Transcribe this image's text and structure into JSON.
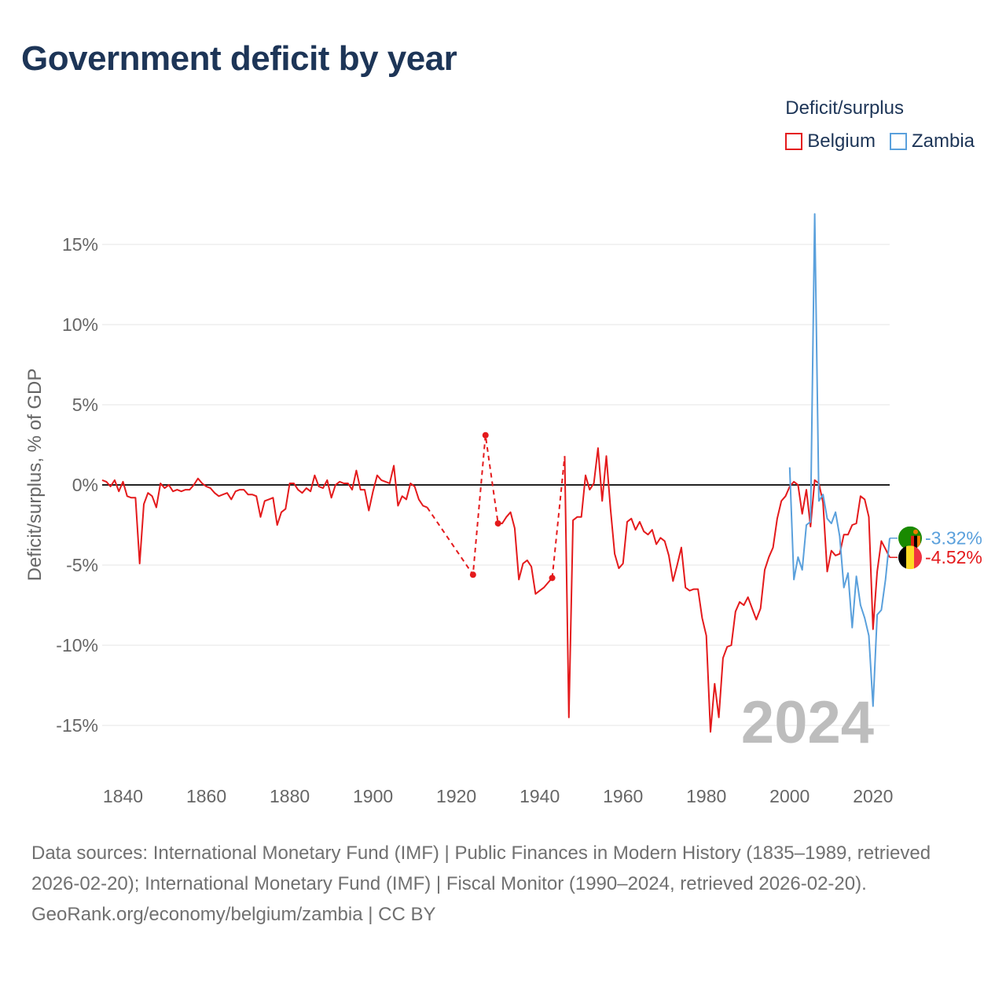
{
  "title": "Government deficit by year",
  "legend": {
    "title": "Deficit/surplus",
    "items": [
      {
        "name": "Belgium",
        "color": "#e41a1c"
      },
      {
        "name": "Zambia",
        "color": "#5aa0dc"
      }
    ]
  },
  "footer": {
    "sources": "Data sources: International Monetary Fund (IMF) | Public Finances in Modern History (1835–1989, retrieved 2026-02-20); International Monetary Fund (IMF) | Fiscal Monitor (1990–2024, retrieved 2026-02-20).",
    "credit": "GeoRank.org/economy/belgium/zambia | CC BY"
  },
  "chart_data": {
    "type": "line",
    "title": "Government deficit by year",
    "xlabel": "",
    "ylabel": "Deficit/surplus, % of GDP",
    "xlim": [
      1835,
      2024
    ],
    "ylim": [
      -17,
      17
    ],
    "yticks": [
      15,
      10,
      5,
      0,
      -5,
      -10,
      -15
    ],
    "ytick_labels": [
      "15%",
      "10%",
      "5%",
      "0%",
      "-5%",
      "-10%",
      "-15%"
    ],
    "xticks": [
      1840,
      1860,
      1880,
      1900,
      1920,
      1940,
      1960,
      1980,
      2000,
      2020
    ],
    "xtick_labels": [
      "1840",
      "1860",
      "1880",
      "1900",
      "1920",
      "1940",
      "1960",
      "1980",
      "2000",
      "2020"
    ],
    "year_label": "2024",
    "end_labels": [
      {
        "series": "Zambia",
        "value": -3.32,
        "label": "-3.32%",
        "color": "#5aa0dc"
      },
      {
        "series": "Belgium",
        "value": -4.52,
        "label": "-4.52%",
        "color": "#e41a1c"
      }
    ],
    "series": [
      {
        "name": "Belgium",
        "color": "#e41a1c",
        "segments": [
          {
            "style": "solid",
            "points": [
              [
                1835,
                0.3
              ],
              [
                1836,
                0.2
              ],
              [
                1837,
                -0.1
              ],
              [
                1838,
                0.3
              ],
              [
                1839,
                -0.4
              ],
              [
                1840,
                0.2
              ],
              [
                1841,
                -0.7
              ],
              [
                1842,
                -0.8
              ],
              [
                1843,
                -0.8
              ],
              [
                1844,
                -4.9
              ],
              [
                1845,
                -1.2
              ],
              [
                1846,
                -0.5
              ],
              [
                1847,
                -0.7
              ],
              [
                1848,
                -1.4
              ],
              [
                1849,
                0.1
              ],
              [
                1850,
                -0.2
              ],
              [
                1851,
                0.0
              ],
              [
                1852,
                -0.4
              ],
              [
                1853,
                -0.3
              ],
              [
                1854,
                -0.4
              ],
              [
                1855,
                -0.3
              ],
              [
                1856,
                -0.3
              ],
              [
                1857,
                0.0
              ],
              [
                1858,
                0.4
              ],
              [
                1859,
                0.1
              ],
              [
                1860,
                -0.1
              ],
              [
                1861,
                -0.2
              ],
              [
                1862,
                -0.5
              ],
              [
                1863,
                -0.7
              ],
              [
                1864,
                -0.6
              ],
              [
                1865,
                -0.5
              ],
              [
                1866,
                -0.9
              ],
              [
                1867,
                -0.4
              ],
              [
                1868,
                -0.3
              ],
              [
                1869,
                -0.3
              ],
              [
                1870,
                -0.6
              ],
              [
                1871,
                -0.6
              ],
              [
                1872,
                -0.7
              ],
              [
                1873,
                -2.0
              ],
              [
                1874,
                -1.0
              ],
              [
                1875,
                -0.9
              ],
              [
                1876,
                -0.8
              ],
              [
                1877,
                -2.5
              ],
              [
                1878,
                -1.7
              ],
              [
                1879,
                -1.5
              ],
              [
                1880,
                0.1
              ],
              [
                1881,
                0.1
              ],
              [
                1882,
                -0.3
              ],
              [
                1883,
                -0.5
              ],
              [
                1884,
                -0.2
              ],
              [
                1885,
                -0.4
              ],
              [
                1886,
                0.6
              ],
              [
                1887,
                -0.1
              ],
              [
                1888,
                -0.2
              ],
              [
                1889,
                0.3
              ],
              [
                1890,
                -0.8
              ],
              [
                1891,
                -0.0
              ],
              [
                1892,
                0.2
              ],
              [
                1893,
                0.1
              ],
              [
                1894,
                0.1
              ],
              [
                1895,
                -0.3
              ],
              [
                1896,
                0.9
              ],
              [
                1897,
                -0.3
              ],
              [
                1898,
                -0.3
              ],
              [
                1899,
                -1.6
              ],
              [
                1900,
                -0.4
              ],
              [
                1901,
                0.6
              ],
              [
                1902,
                0.3
              ],
              [
                1903,
                0.2
              ],
              [
                1904,
                0.1
              ],
              [
                1905,
                1.2
              ],
              [
                1906,
                -1.3
              ],
              [
                1907,
                -0.7
              ],
              [
                1908,
                -0.9
              ],
              [
                1909,
                0.1
              ],
              [
                1910,
                -0.1
              ],
              [
                1911,
                -0.9
              ],
              [
                1912,
                -1.3
              ],
              [
                1913,
                -1.4
              ]
            ]
          },
          {
            "style": "dashed",
            "points": [
              [
                1913,
                -1.4
              ],
              [
                1924,
                -5.6
              ],
              [
                1927,
                3.1
              ],
              [
                1930,
                -2.4
              ]
            ]
          },
          {
            "style": "solid",
            "points": [
              [
                1930,
                -2.4
              ],
              [
                1931,
                -2.4
              ],
              [
                1932,
                -2.0
              ],
              [
                1933,
                -1.7
              ],
              [
                1934,
                -2.7
              ],
              [
                1935,
                -5.9
              ],
              [
                1936,
                -4.9
              ],
              [
                1937,
                -4.7
              ],
              [
                1938,
                -5.1
              ],
              [
                1939,
                -6.8
              ],
              [
                1940,
                -6.6
              ],
              [
                1941,
                -6.4
              ],
              [
                1942,
                -6.1
              ],
              [
                1943,
                -5.8
              ]
            ]
          },
          {
            "style": "dashed",
            "points": [
              [
                1943,
                -5.8
              ],
              [
                1946,
                1.8
              ]
            ]
          },
          {
            "style": "solid",
            "points": [
              [
                1946,
                1.8
              ],
              [
                1947,
                -14.5
              ],
              [
                1948,
                -2.2
              ],
              [
                1949,
                -2.0
              ],
              [
                1950,
                -2.0
              ],
              [
                1951,
                0.6
              ],
              [
                1952,
                -0.3
              ],
              [
                1953,
                0.1
              ],
              [
                1954,
                2.3
              ],
              [
                1955,
                -1.0
              ],
              [
                1956,
                1.8
              ],
              [
                1957,
                -1.5
              ],
              [
                1958,
                -4.3
              ],
              [
                1959,
                -5.2
              ],
              [
                1960,
                -4.9
              ],
              [
                1961,
                -2.3
              ],
              [
                1962,
                -2.1
              ],
              [
                1963,
                -2.8
              ],
              [
                1964,
                -2.3
              ],
              [
                1965,
                -2.9
              ],
              [
                1966,
                -3.1
              ],
              [
                1967,
                -2.8
              ],
              [
                1968,
                -3.7
              ],
              [
                1969,
                -3.3
              ],
              [
                1970,
                -3.5
              ],
              [
                1971,
                -4.4
              ],
              [
                1972,
                -6.0
              ],
              [
                1973,
                -5.0
              ],
              [
                1974,
                -3.9
              ],
              [
                1975,
                -6.4
              ],
              [
                1976,
                -6.6
              ],
              [
                1977,
                -6.5
              ],
              [
                1978,
                -6.5
              ],
              [
                1979,
                -8.3
              ],
              [
                1980,
                -9.4
              ],
              [
                1981,
                -15.4
              ],
              [
                1982,
                -12.4
              ],
              [
                1983,
                -14.5
              ],
              [
                1984,
                -10.8
              ],
              [
                1985,
                -10.1
              ],
              [
                1986,
                -10.0
              ],
              [
                1987,
                -7.9
              ],
              [
                1988,
                -7.3
              ],
              [
                1989,
                -7.5
              ],
              [
                1990,
                -7.0
              ],
              [
                1991,
                -7.7
              ],
              [
                1992,
                -8.4
              ],
              [
                1993,
                -7.7
              ],
              [
                1994,
                -5.3
              ],
              [
                1995,
                -4.5
              ],
              [
                1996,
                -3.9
              ],
              [
                1997,
                -2.1
              ],
              [
                1998,
                -1.0
              ],
              [
                1999,
                -0.7
              ],
              [
                2000,
                -0.1
              ],
              [
                2001,
                0.2
              ],
              [
                2002,
                0.0
              ],
              [
                2003,
                -1.8
              ],
              [
                2004,
                -0.3
              ],
              [
                2005,
                -2.6
              ],
              [
                2006,
                0.3
              ],
              [
                2007,
                0.1
              ],
              [
                2008,
                -1.1
              ],
              [
                2009,
                -5.4
              ],
              [
                2010,
                -4.1
              ],
              [
                2011,
                -4.4
              ],
              [
                2012,
                -4.3
              ],
              [
                2013,
                -3.1
              ],
              [
                2014,
                -3.1
              ],
              [
                2015,
                -2.5
              ],
              [
                2016,
                -2.4
              ],
              [
                2017,
                -0.7
              ],
              [
                2018,
                -0.9
              ],
              [
                2019,
                -2.0
              ],
              [
                2020,
                -9.0
              ],
              [
                2021,
                -5.4
              ],
              [
                2022,
                -3.5
              ],
              [
                2023,
                -4.0
              ],
              [
                2024,
                -4.52
              ]
            ]
          }
        ],
        "markers": [
          [
            1924,
            -5.6
          ],
          [
            1927,
            3.1
          ],
          [
            1930,
            -2.4
          ],
          [
            1943,
            -5.8
          ]
        ]
      },
      {
        "name": "Zambia",
        "color": "#5aa0dc",
        "segments": [
          {
            "style": "solid",
            "points": [
              [
                2000,
                1.1
              ],
              [
                2001,
                -5.9
              ],
              [
                2002,
                -4.5
              ],
              [
                2003,
                -5.3
              ],
              [
                2004,
                -2.5
              ],
              [
                2005,
                -2.3
              ],
              [
                2006,
                16.9
              ],
              [
                2007,
                -1.0
              ],
              [
                2008,
                -0.6
              ],
              [
                2009,
                -2.1
              ],
              [
                2010,
                -2.4
              ],
              [
                2011,
                -1.7
              ],
              [
                2012,
                -3.2
              ],
              [
                2013,
                -6.4
              ],
              [
                2014,
                -5.5
              ],
              [
                2015,
                -8.9
              ],
              [
                2016,
                -5.7
              ],
              [
                2017,
                -7.5
              ],
              [
                2018,
                -8.3
              ],
              [
                2019,
                -9.4
              ],
              [
                2020,
                -13.8
              ],
              [
                2021,
                -8.1
              ],
              [
                2022,
                -7.8
              ],
              [
                2023,
                -5.9
              ],
              [
                2024,
                -3.32
              ]
            ]
          }
        ],
        "markers": []
      }
    ]
  }
}
